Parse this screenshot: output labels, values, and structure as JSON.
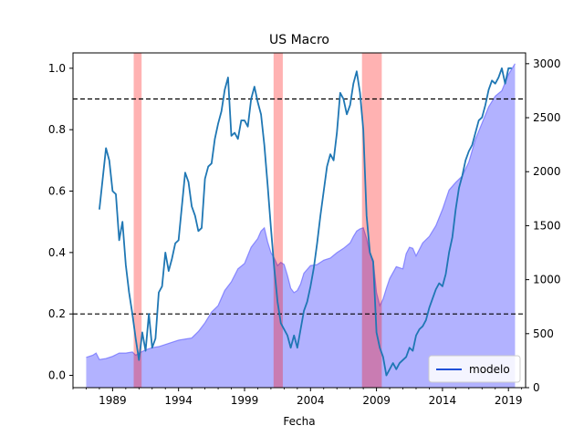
{
  "chart_data": {
    "type": "line",
    "title": "US Macro",
    "xlabel": "Fecha",
    "ylabel": "",
    "x_ticks": [
      1989,
      1994,
      1999,
      2004,
      2009,
      2014,
      2019
    ],
    "xlim": [
      1986.0,
      2020.3
    ],
    "ylim_left": [
      -0.04,
      1.05
    ],
    "ylim_right": [
      0,
      3100
    ],
    "y_ticks_left": [
      "0.0",
      "0.2",
      "0.4",
      "0.6",
      "0.8",
      "1.0"
    ],
    "y_ticks_right": [
      "0",
      "500",
      "1000",
      "1500",
      "2000",
      "2500",
      "3000"
    ],
    "grid": false,
    "legend": {
      "position": "bottom-right",
      "entries": [
        {
          "label": "modelo",
          "color": "#1f4fd8"
        }
      ]
    },
    "thresholds": [
      {
        "y": 0.9,
        "style": "dashed",
        "color": "#000000"
      },
      {
        "y": 0.2,
        "style": "dashed",
        "color": "#000000"
      }
    ],
    "recession_bands": [
      {
        "start": 1990.6,
        "end": 1991.2
      },
      {
        "start": 2001.2,
        "end": 2001.9
      },
      {
        "start": 2007.9,
        "end": 2009.4
      }
    ],
    "series": [
      {
        "name": "modelo",
        "axis": "left",
        "color": "#1f77b4",
        "x": [
          1988.0,
          1988.5,
          1988.75,
          1989.0,
          1989.25,
          1989.5,
          1989.75,
          1990.0,
          1990.25,
          1990.5,
          1990.75,
          1991.0,
          1991.25,
          1991.5,
          1991.75,
          1992.0,
          1992.25,
          1992.5,
          1992.75,
          1993.0,
          1993.25,
          1993.5,
          1993.75,
          1994.0,
          1994.25,
          1994.5,
          1994.75,
          1995.0,
          1995.25,
          1995.5,
          1995.75,
          1996.0,
          1996.25,
          1996.5,
          1996.75,
          1997.0,
          1997.25,
          1997.5,
          1997.75,
          1998.0,
          1998.25,
          1998.5,
          1998.75,
          1999.0,
          1999.25,
          1999.5,
          1999.75,
          2000.0,
          2000.25,
          2000.5,
          2000.75,
          2001.0,
          2001.25,
          2001.5,
          2001.75,
          2002.0,
          2002.25,
          2002.5,
          2002.75,
          2003.0,
          2003.25,
          2003.5,
          2003.75,
          2004.0,
          2004.25,
          2004.5,
          2004.75,
          2005.0,
          2005.25,
          2005.5,
          2005.75,
          2006.0,
          2006.25,
          2006.5,
          2006.75,
          2007.0,
          2007.25,
          2007.5,
          2007.75,
          2008.0,
          2008.25,
          2008.5,
          2008.75,
          2009.0,
          2009.25,
          2009.5,
          2009.75,
          2010.0,
          2010.25,
          2010.5,
          2010.75,
          2011.0,
          2011.25,
          2011.5,
          2011.75,
          2012.0,
          2012.25,
          2012.5,
          2012.75,
          2013.0,
          2013.25,
          2013.5,
          2013.75,
          2014.0,
          2014.25,
          2014.5,
          2014.75,
          2015.0,
          2015.25,
          2015.5,
          2015.75,
          2016.0,
          2016.25,
          2016.5,
          2016.75,
          2017.0,
          2017.25,
          2017.5,
          2017.75,
          2018.0,
          2018.25,
          2018.5,
          2018.75,
          2019.0,
          2019.25
        ],
        "values": [
          0.54,
          0.74,
          0.7,
          0.6,
          0.59,
          0.44,
          0.5,
          0.36,
          0.27,
          0.2,
          0.12,
          0.05,
          0.14,
          0.08,
          0.2,
          0.09,
          0.12,
          0.27,
          0.29,
          0.4,
          0.34,
          0.38,
          0.43,
          0.44,
          0.55,
          0.66,
          0.63,
          0.55,
          0.52,
          0.47,
          0.48,
          0.64,
          0.68,
          0.69,
          0.77,
          0.82,
          0.86,
          0.93,
          0.97,
          0.78,
          0.79,
          0.77,
          0.83,
          0.83,
          0.81,
          0.9,
          0.94,
          0.89,
          0.85,
          0.75,
          0.62,
          0.48,
          0.35,
          0.24,
          0.17,
          0.15,
          0.13,
          0.09,
          0.13,
          0.09,
          0.15,
          0.21,
          0.24,
          0.29,
          0.35,
          0.43,
          0.52,
          0.6,
          0.68,
          0.72,
          0.7,
          0.79,
          0.92,
          0.9,
          0.85,
          0.88,
          0.95,
          0.99,
          0.92,
          0.8,
          0.52,
          0.4,
          0.37,
          0.14,
          0.09,
          0.06,
          0.0,
          0.02,
          0.04,
          0.02,
          0.04,
          0.05,
          0.06,
          0.09,
          0.08,
          0.13,
          0.15,
          0.16,
          0.18,
          0.22,
          0.25,
          0.28,
          0.3,
          0.29,
          0.33,
          0.4,
          0.45,
          0.54,
          0.61,
          0.65,
          0.7,
          0.73,
          0.75,
          0.79,
          0.83,
          0.84,
          0.88,
          0.93,
          0.96,
          0.95,
          0.97,
          1.0,
          0.95,
          1.0,
          1.0
        ]
      },
      {
        "name": "",
        "axis": "right",
        "type": "area",
        "color": "#6666ff",
        "x": [
          1987.0,
          1987.5,
          1987.75,
          1988.0,
          1988.5,
          1989.0,
          1989.5,
          1990.0,
          1990.5,
          1990.75,
          1991.0,
          1991.5,
          1992.0,
          1992.5,
          1993.0,
          1993.5,
          1994.0,
          1994.5,
          1995.0,
          1995.5,
          1996.0,
          1996.5,
          1997.0,
          1997.5,
          1998.0,
          1998.5,
          1999.0,
          1999.5,
          2000.0,
          2000.25,
          2000.5,
          2000.75,
          2001.0,
          2001.25,
          2001.5,
          2001.75,
          2002.0,
          2002.25,
          2002.5,
          2002.75,
          2003.0,
          2003.25,
          2003.5,
          2004.0,
          2004.5,
          2005.0,
          2005.5,
          2006.0,
          2006.5,
          2007.0,
          2007.25,
          2007.5,
          2007.75,
          2008.0,
          2008.25,
          2008.5,
          2008.75,
          2009.0,
          2009.25,
          2009.5,
          2009.75,
          2010.0,
          2010.5,
          2011.0,
          2011.25,
          2011.5,
          2011.75,
          2012.0,
          2012.5,
          2013.0,
          2013.5,
          2014.0,
          2014.5,
          2015.0,
          2015.5,
          2016.0,
          2016.5,
          2017.0,
          2017.5,
          2018.0,
          2018.5,
          2019.0,
          2019.5
        ],
        "values": [
          280,
          300,
          320,
          260,
          270,
          290,
          320,
          320,
          330,
          300,
          320,
          350,
          370,
          380,
          400,
          420,
          440,
          450,
          460,
          520,
          600,
          700,
          760,
          900,
          980,
          1100,
          1150,
          1300,
          1380,
          1450,
          1480,
          1350,
          1250,
          1200,
          1130,
          1160,
          1140,
          1040,
          920,
          880,
          900,
          960,
          1060,
          1130,
          1140,
          1180,
          1200,
          1250,
          1290,
          1340,
          1400,
          1450,
          1470,
          1480,
          1380,
          1240,
          1180,
          880,
          760,
          820,
          920,
          1010,
          1120,
          1100,
          1240,
          1300,
          1290,
          1220,
          1340,
          1400,
          1500,
          1650,
          1830,
          1900,
          1960,
          2090,
          2300,
          2450,
          2600,
          2700,
          2750,
          2900,
          3000
        ]
      }
    ]
  }
}
